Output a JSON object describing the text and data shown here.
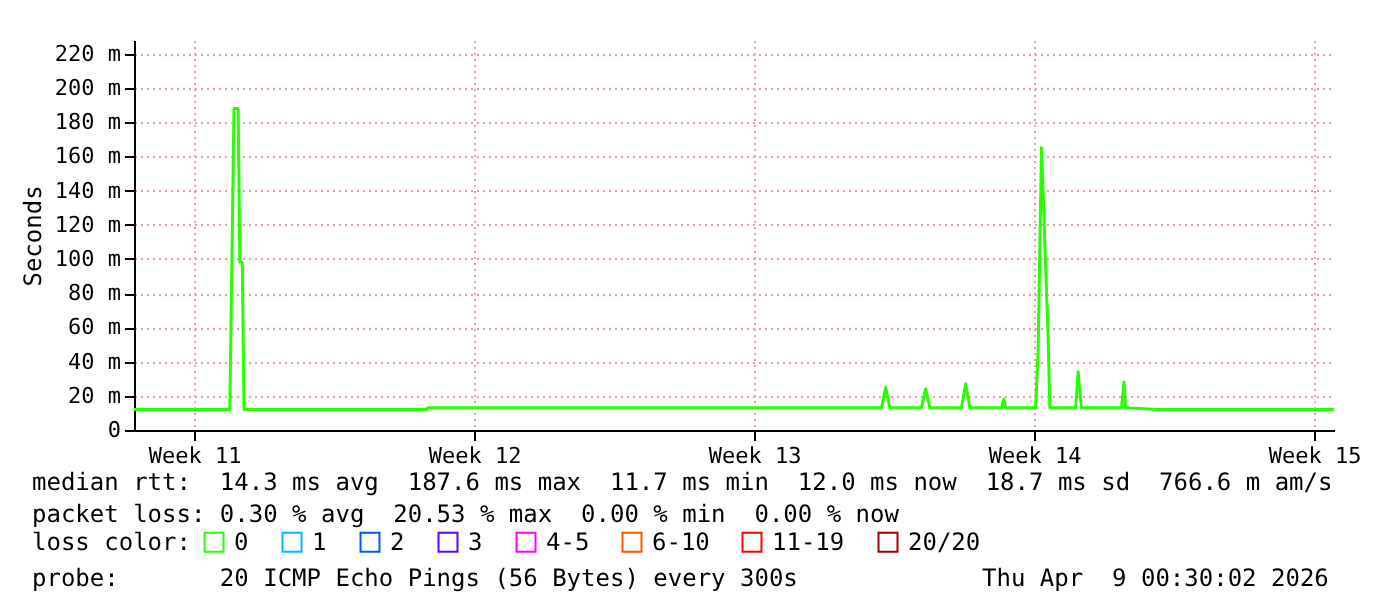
{
  "chart_data": {
    "type": "line",
    "ylabel": "Seconds",
    "legend_title": "loss color:",
    "legend": "bottom",
    "grid": true,
    "marker": "none",
    "line_style": "solid",
    "x": [
      "2026-03-10T00:30",
      "2026-03-12T10:00",
      "2026-03-12T12:30",
      "2026-03-12T15:00",
      "2026-03-12T16:00",
      "2026-03-12T17:30",
      "2026-03-12T18:30",
      "2026-03-17T08:00",
      "2026-03-17T09:00",
      "2026-03-28T17:00",
      "2026-03-28T19:30",
      "2026-03-28T22:00",
      "2026-03-29T17:00",
      "2026-03-29T19:30",
      "2026-03-29T22:00",
      "2026-03-30T17:00",
      "2026-03-30T19:30",
      "2026-03-30T22:00",
      "2026-03-31T17:00",
      "2026-03-31T18:30",
      "2026-03-31T19:30",
      "2026-04-01T13:30",
      "2026-04-01T15:00",
      "2026-04-01T17:00",
      "2026-04-01T21:00",
      "2026-04-01T22:00",
      "2026-04-02T13:30",
      "2026-04-02T15:00",
      "2026-04-02T17:00",
      "2026-04-03T17:00",
      "2026-04-03T18:30",
      "2026-04-03T19:30",
      "2026-04-04T15:00",
      "2026-04-09T00:30"
    ],
    "xlim": [
      "2026-03-10T00:30",
      "2026-04-09T00:30"
    ],
    "xticks": [
      {
        "value": "2026-03-11T12:30",
        "label": "Week 11"
      },
      {
        "value": "2026-03-18T12:30",
        "label": "Week 12"
      },
      {
        "value": "2026-03-25T12:30",
        "label": "Week 13"
      },
      {
        "value": "2026-04-01T12:30",
        "label": "Week 14"
      },
      {
        "value": "2026-04-08T12:30",
        "label": "Week 15"
      }
    ],
    "ylim": [
      0,
      228
    ],
    "yticks": [
      0,
      {
        "value": 20,
        "label": "20 m"
      },
      {
        "value": 40,
        "label": "40 m"
      },
      {
        "value": 60,
        "label": "60 m"
      },
      {
        "value": 80,
        "label": "80 m"
      },
      {
        "value": 100,
        "label": "100 m"
      },
      {
        "value": 120,
        "label": "120 m"
      },
      {
        "value": 140,
        "label": "140 m"
      },
      {
        "value": 160,
        "label": "160 m"
      },
      {
        "value": 180,
        "label": "180 m"
      },
      {
        "value": 200,
        "label": "200 m"
      },
      {
        "value": 220,
        "label": "220 m"
      }
    ],
    "series": [
      {
        "name": "0",
        "color": "#26ff00",
        "values": [
          12,
          12,
          188,
          188,
          98,
          98,
          12,
          12,
          13,
          13,
          25,
          13,
          13,
          24,
          13,
          13,
          27,
          13,
          13,
          18,
          13,
          13,
          47,
          165,
          53,
          13,
          13,
          34,
          13,
          13,
          28,
          13,
          12,
          12
        ]
      },
      {
        "name": "1",
        "color": "#00b8ff",
        "values": [
          null,
          null,
          null,
          null,
          null,
          null,
          null,
          null,
          null,
          null,
          null,
          null,
          null,
          null,
          null,
          null,
          null,
          null,
          null,
          null,
          null,
          null,
          null,
          null,
          null,
          null,
          null,
          null,
          null,
          null,
          null,
          null,
          null,
          null
        ]
      },
      {
        "name": "2",
        "color": "#0059ff",
        "values": [
          null,
          null,
          null,
          null,
          null,
          null,
          null,
          null,
          null,
          null,
          null,
          null,
          null,
          null,
          null,
          null,
          null,
          null,
          null,
          null,
          null,
          null,
          null,
          null,
          null,
          null,
          null,
          null,
          null,
          null,
          null,
          null,
          null,
          null
        ]
      },
      {
        "name": "3",
        "color": "#5e00ff",
        "values": [
          null,
          null,
          null,
          null,
          null,
          null,
          null,
          null,
          null,
          null,
          null,
          null,
          null,
          null,
          null,
          null,
          null,
          null,
          null,
          null,
          null,
          null,
          null,
          null,
          null,
          null,
          null,
          null,
          null,
          null,
          null,
          null,
          null,
          null
        ]
      },
      {
        "name": "4-5",
        "color": "#ff00ff",
        "values": [
          null,
          null,
          null,
          null,
          null,
          null,
          null,
          null,
          null,
          null,
          null,
          null,
          null,
          null,
          null,
          null,
          null,
          null,
          null,
          null,
          null,
          null,
          null,
          null,
          null,
          null,
          null,
          null,
          null,
          null,
          null,
          null,
          null,
          null
        ]
      },
      {
        "name": "6-10",
        "color": "#ff5500",
        "values": [
          null,
          null,
          null,
          null,
          null,
          null,
          null,
          null,
          null,
          null,
          null,
          null,
          null,
          null,
          null,
          null,
          null,
          null,
          null,
          null,
          null,
          null,
          null,
          null,
          null,
          null,
          null,
          null,
          null,
          null,
          null,
          null,
          null,
          null
        ]
      },
      {
        "name": "11-19",
        "color": "#ff0000",
        "values": [
          null,
          null,
          null,
          null,
          null,
          null,
          null,
          null,
          null,
          null,
          null,
          null,
          null,
          null,
          null,
          null,
          null,
          null,
          null,
          null,
          null,
          null,
          null,
          null,
          null,
          null,
          null,
          null,
          null,
          null,
          null,
          null,
          null,
          null
        ]
      },
      {
        "name": "20/20",
        "color": "#a10000",
        "values": [
          null,
          null,
          null,
          null,
          null,
          null,
          null,
          null,
          null,
          null,
          null,
          null,
          null,
          null,
          null,
          null,
          null,
          null,
          null,
          null,
          null,
          null,
          null,
          null,
          null,
          null,
          null,
          null,
          null,
          null,
          null,
          null,
          null,
          null
        ]
      }
    ],
    "annotations": [
      "median rtt:  14.3 ms avg  187.6 ms max  11.7 ms min  12.0 ms now  18.7 ms sd  766.6 m am/s",
      "packet loss: 0.30 % avg  20.53 % max  0.00 % min  0.00 % now",
      "probe:       20 ICMP Echo Pings (56 Bytes) every 300s",
      "Thu Apr  9 00:30:02 2026"
    ]
  }
}
